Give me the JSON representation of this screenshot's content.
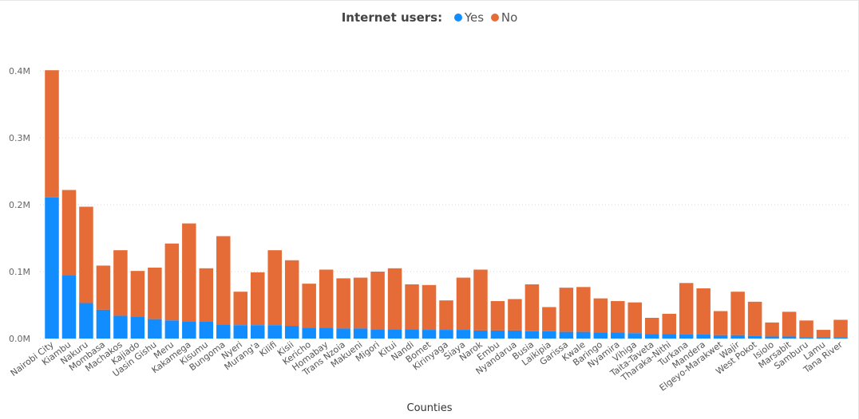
{
  "chart_data": {
    "type": "bar",
    "stacked": true,
    "legend_title": "Internet users:",
    "legend_position": "top-center",
    "xlabel": "Counties",
    "ylabel": "",
    "ylim": [
      0,
      400000
    ],
    "y_ticks": [
      0,
      100000,
      200000,
      300000,
      400000
    ],
    "y_tick_labels": [
      "0.0M",
      "0.1M",
      "0.2M",
      "0.3M",
      "0.4M"
    ],
    "grid": true,
    "categories": [
      "Nairobi City",
      "Kiambu",
      "Nakuru",
      "Mombasa",
      "Machakos",
      "Kajiado",
      "Uasin Gishu",
      "Meru",
      "Kakamega",
      "Kisumu",
      "Bungoma",
      "Nyeri",
      "Murang'a",
      "Kilifi",
      "Kisii",
      "Kericho",
      "Homabay",
      "Trans Nzoia",
      "Makueni",
      "Migori",
      "Kitui",
      "Nandi",
      "Bomet",
      "Kirinyaga",
      "Siaya",
      "Narok",
      "Embu",
      "Nyandarua",
      "Busia",
      "Laikipia",
      "Garissa",
      "Kwale",
      "Baringo",
      "Nyamira",
      "Vihiga",
      "Taita-Taveta",
      "Tharaka-Nithi",
      "Turkana",
      "Mandera",
      "Elgeyo-Marakwet",
      "Wajir",
      "West Pokot",
      "Isiolo",
      "Marsabit",
      "Samburu",
      "Lamu",
      "Tana River"
    ],
    "series": [
      {
        "name": "Yes",
        "color": "#118dff",
        "values": [
          211000,
          95000,
          53000,
          43000,
          34000,
          33000,
          29000,
          27000,
          25000,
          25000,
          21000,
          20000,
          20000,
          20000,
          19000,
          16000,
          16000,
          15000,
          15000,
          14000,
          14000,
          14000,
          13000,
          13000,
          13000,
          12000,
          12000,
          12000,
          11000,
          11000,
          10000,
          10000,
          9000,
          9000,
          8000,
          7000,
          7000,
          6000,
          6000,
          5000,
          5000,
          4000,
          3000,
          3000,
          2000,
          2000,
          2000
        ]
      },
      {
        "name": "No",
        "color": "#e66c37",
        "values": [
          190000,
          127000,
          144000,
          66000,
          98000,
          68000,
          77000,
          115000,
          147000,
          80000,
          132000,
          50000,
          79000,
          112000,
          98000,
          66000,
          87000,
          75000,
          76000,
          86000,
          91000,
          67000,
          67000,
          44000,
          78000,
          91000,
          44000,
          47000,
          70000,
          36000,
          66000,
          67000,
          51000,
          47000,
          46000,
          24000,
          30000,
          77000,
          69000,
          36000,
          65000,
          51000,
          21000,
          37000,
          25000,
          11000,
          26000
        ]
      }
    ]
  }
}
